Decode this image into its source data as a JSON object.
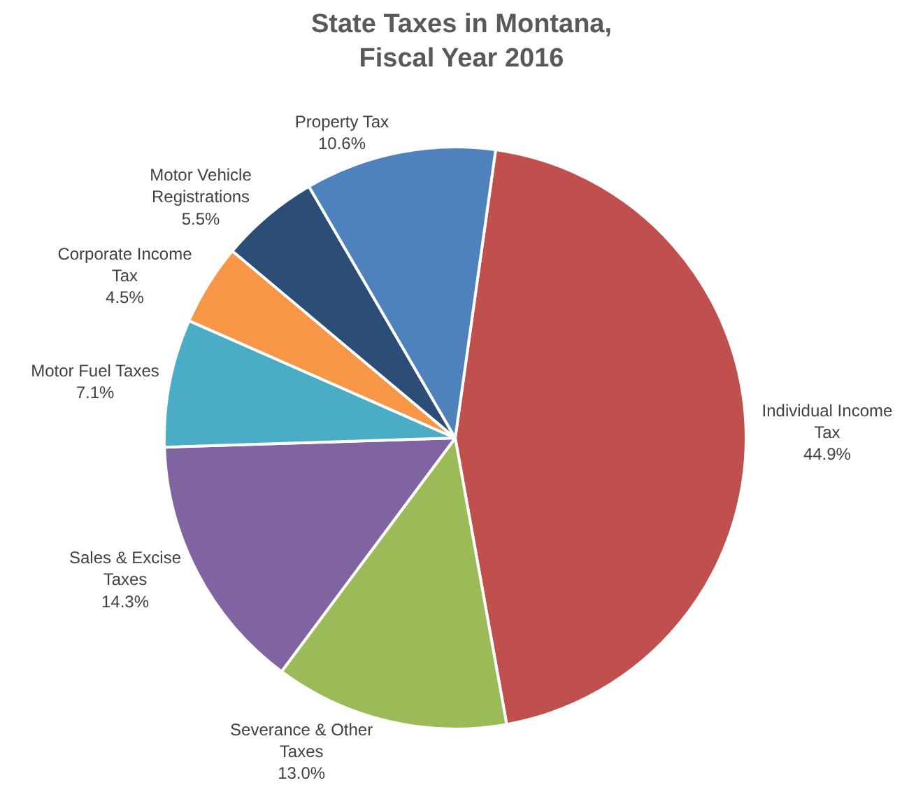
{
  "chart_data": {
    "type": "pie",
    "title": "State Taxes in Montana, Fiscal Year 2016",
    "categories": [
      "Individual Income Tax",
      "Severance & Other Taxes",
      "Sales & Excise Taxes",
      "Motor Fuel Taxes",
      "Corporate Income Tax",
      "Motor Vehicle Registrations",
      "Property Tax"
    ],
    "values": [
      44.9,
      13.0,
      14.3,
      7.1,
      4.5,
      5.5,
      10.6
    ],
    "colors": [
      "#c0504d",
      "#9bbb59",
      "#8064a2",
      "#4bacc6",
      "#f79646",
      "#2c4d75",
      "#4f81bd"
    ],
    "value_labels": [
      "44.9%",
      "13.0%",
      "14.3%",
      "7.1%",
      "4.5%",
      "5.5%",
      "10.6%"
    ],
    "legend": false
  }
}
